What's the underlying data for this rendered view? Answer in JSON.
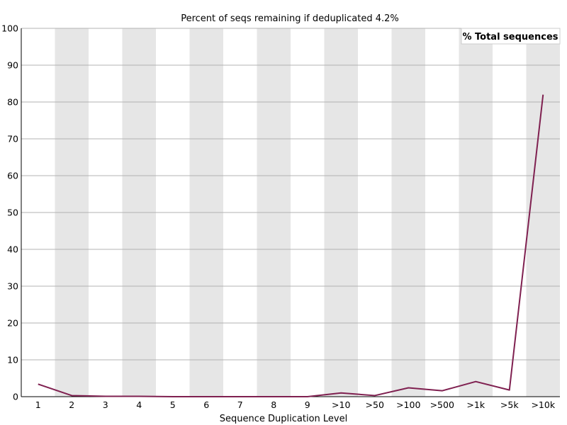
{
  "chart_data": {
    "type": "line",
    "title": "Percent of seqs remaining if deduplicated 4.2%",
    "xlabel": "Sequence Duplication Level",
    "ylabel": "",
    "ylim": [
      0,
      100
    ],
    "yticks": [
      0,
      10,
      20,
      30,
      40,
      50,
      60,
      70,
      80,
      90,
      100
    ],
    "categories": [
      "1",
      "2",
      "3",
      "4",
      "5",
      "6",
      "7",
      "8",
      "9",
      ">10",
      ">50",
      ">100",
      ">500",
      ">1k",
      ">5k",
      ">10k"
    ],
    "grid": true,
    "alternating_bands": true,
    "legend_position": "top-right",
    "series": [
      {
        "name": "% Total sequences",
        "color": "#7f2050",
        "values": [
          3.4,
          0.3,
          0.1,
          0.1,
          0.0,
          0.0,
          0.0,
          0.0,
          0.0,
          1.0,
          0.3,
          2.4,
          1.6,
          4.1,
          1.8,
          82.0
        ]
      }
    ]
  }
}
